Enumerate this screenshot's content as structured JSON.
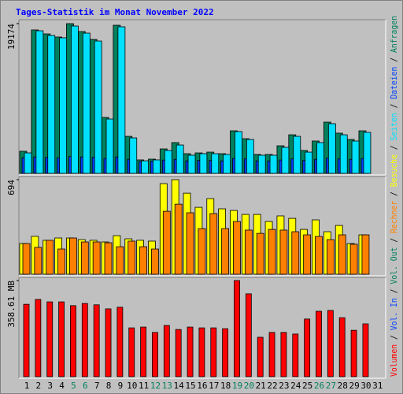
{
  "chart_data": {
    "type": "bar",
    "title": "Tages-Statistik im Monat November 2022",
    "title_color": "#0000FF",
    "categories": [
      "1",
      "2",
      "3",
      "4",
      "5",
      "6",
      "7",
      "8",
      "9",
      "10",
      "11",
      "12",
      "13",
      "14",
      "15",
      "16",
      "17",
      "18",
      "19",
      "20",
      "21",
      "22",
      "23",
      "24",
      "25",
      "26",
      "27",
      "28",
      "29",
      "30",
      "31"
    ],
    "category_colors": [
      "#000000",
      "#000000",
      "#000000",
      "#000000",
      "#00805C",
      "#00805C",
      "#000000",
      "#000000",
      "#000000",
      "#000000",
      "#000000",
      "#00805C",
      "#00805C",
      "#000000",
      "#000000",
      "#000000",
      "#000000",
      "#000000",
      "#00805C",
      "#00805C",
      "#000000",
      "#000000",
      "#000000",
      "#000000",
      "#000000",
      "#00805C",
      "#00805C",
      "#000000",
      "#000000",
      "#000000",
      "#000000"
    ],
    "separator": "/",
    "panels": [
      {
        "ylim": [
          0,
          19174
        ],
        "yticks": [
          19174
        ],
        "series": [
          {
            "name": "Anfragen",
            "color": "#00805C",
            "values": [
              2830,
              18370,
              17860,
              17460,
              19174,
              18160,
              17150,
              7160,
              18970,
              4740,
              1720,
              1820,
              3130,
              3940,
              2520,
              2620,
              2720,
              2520,
              5450,
              4440,
              2420,
              2420,
              3530,
              4940,
              2930,
              4140,
              6560,
              5150,
              4340,
              5450,
              null
            ]
          },
          {
            "name": "Dateien",
            "color": "#0040FF",
            "values": [
              2000,
              2100,
              2050,
              2000,
              2150,
              2100,
              2050,
              1900,
              2100,
              1800,
              1500,
              1550,
              1700,
              1800,
              1600,
              1650,
              1650,
              1600,
              1900,
              1850,
              1600,
              1600,
              1700,
              1850,
              1650,
              1800,
              1950,
              1850,
              1800,
              1900,
              null
            ]
          },
          {
            "name": "Seiten",
            "color": "#00E0FF",
            "values": [
              2620,
              18260,
              17660,
              17360,
              18870,
              17960,
              16950,
              6960,
              18770,
              4540,
              1610,
              1720,
              2930,
              3630,
              2320,
              2520,
              2520,
              2420,
              5350,
              4340,
              2320,
              2320,
              3330,
              4740,
              2720,
              3940,
              6360,
              4940,
              4140,
              5250,
              null
            ]
          }
        ]
      },
      {
        "ylim": [
          0,
          694
        ],
        "yticks": [
          694
        ],
        "series": [
          {
            "name": "Besuche",
            "color": "#FFFF00",
            "values": [
              225,
              278,
              249,
              266,
              266,
              254,
              249,
              237,
              283,
              260,
              249,
              243,
              665,
              694,
              595,
              491,
              555,
              480,
              468,
              439,
              439,
              387,
              428,
              410,
              329,
              399,
              312,
              358,
              225,
              289,
              null
            ]
          },
          {
            "name": "Rechner",
            "color": "#FF8000",
            "values": [
              225,
              197,
              249,
              185,
              266,
              237,
              237,
              231,
              202,
              243,
              202,
              185,
              462,
              514,
              451,
              335,
              445,
              335,
              387,
              324,
              300,
              329,
              324,
              312,
              289,
              277,
              254,
              289,
              220,
              289,
              null
            ]
          }
        ]
      },
      {
        "ylim": [
          0,
          358.61
        ],
        "yticks": [
          {
            "value": 358.61,
            "label": "358.61 MB"
          }
        ],
        "series": [
          {
            "name": "Volumen",
            "color": "#FF0000",
            "values": [
              270,
              288,
              279,
              279,
              265,
              273,
              268,
              253,
              259,
              182,
              185,
              165,
              191,
              176,
              185,
              182,
              182,
              179,
              358.61,
              309,
              147,
              165,
              165,
              159,
              215,
              244,
              247,
              220,
              173,
              197,
              null
            ]
          }
        ],
        "extra_legend": [
          {
            "name": "Vol. In",
            "color": "#0040FF"
          },
          {
            "name": "Vol. Out",
            "color": "#00805C"
          }
        ]
      }
    ]
  }
}
